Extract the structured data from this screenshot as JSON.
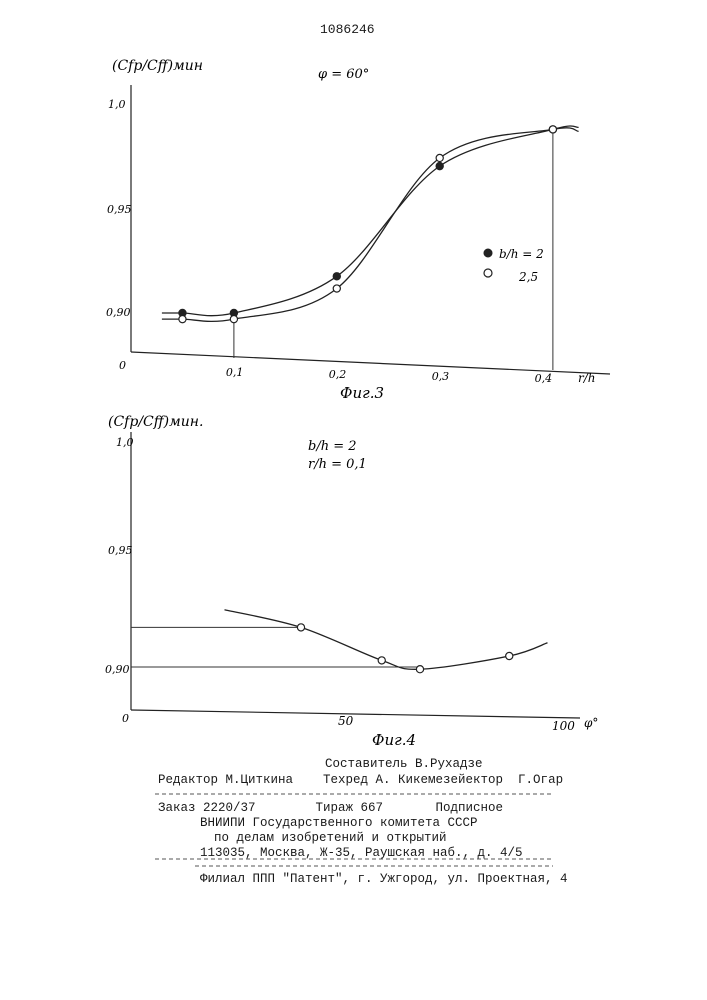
{
  "doc_number": "1086246",
  "fig3": {
    "y_label": "(Cfp/Cff)мин",
    "param": "φ = 60°",
    "y_ticks": [
      "1,0",
      "0,95",
      "0,90"
    ],
    "origin": "0",
    "x_ticks": [
      "0,1",
      "0,2",
      "0,3",
      "0,4"
    ],
    "x_label": "r/h",
    "caption": "Фиг.3",
    "legend": [
      {
        "marker": "filled-circle",
        "label": "b/h = 2"
      },
      {
        "marker": "open-circle",
        "label": "2,5"
      }
    ]
  },
  "fig4": {
    "y_label": "(Cfp/Cff)мин.",
    "param_1": "b/h = 2",
    "param_2": "r/h = 0,1",
    "y_ticks": [
      "1,0",
      "0,95",
      "0,90"
    ],
    "origin": "0",
    "x_ticks": [
      "50",
      "100"
    ],
    "x_label": "φ°",
    "caption": "Фиг.4"
  },
  "chart_data": [
    {
      "type": "line",
      "title": "",
      "xlabel": "r/h",
      "ylabel": "(Cfp/Cff)мин",
      "xlim": [
        0,
        0.45
      ],
      "ylim": [
        0.875,
        1.005
      ],
      "series": [
        {
          "name": "b/h = 2",
          "x": [
            0.05,
            0.1,
            0.2,
            0.3,
            0.41
          ],
          "y": [
            0.9,
            0.9,
            0.918,
            0.972,
            0.99
          ]
        },
        {
          "name": "2,5",
          "x": [
            0.05,
            0.1,
            0.2,
            0.3,
            0.41
          ],
          "y": [
            0.897,
            0.897,
            0.912,
            0.976,
            0.99
          ]
        }
      ]
    },
    {
      "type": "line",
      "title": "",
      "xlabel": "φ°",
      "ylabel": "(Cfp/Cff)мин.",
      "xlim": [
        0,
        100
      ],
      "ylim": [
        0.875,
        1.005
      ],
      "series": [
        {
          "x": [
            40,
            59,
            68,
            89
          ],
          "y": [
            0.918,
            0.903,
            0.899,
            0.905
          ]
        }
      ]
    }
  ],
  "footer": {
    "compiler": "Составитель В.Рухадзе",
    "editor_line": "Редактор М.Циткина    Техред А. Кикемезейектор  Г.Огар",
    "order_line": "Заказ 2220/37        Тираж 667       Подписное",
    "org_1": "ВНИИПИ Государственного комитета СССР",
    "org_2": "по делам изобретений и открытий",
    "address": "113035, Москва, Ж-35, Раушская наб., д. 4/5",
    "branch": "Филиал ППП \"Патент\", г. Ужгород, ул. Проектная, 4"
  }
}
